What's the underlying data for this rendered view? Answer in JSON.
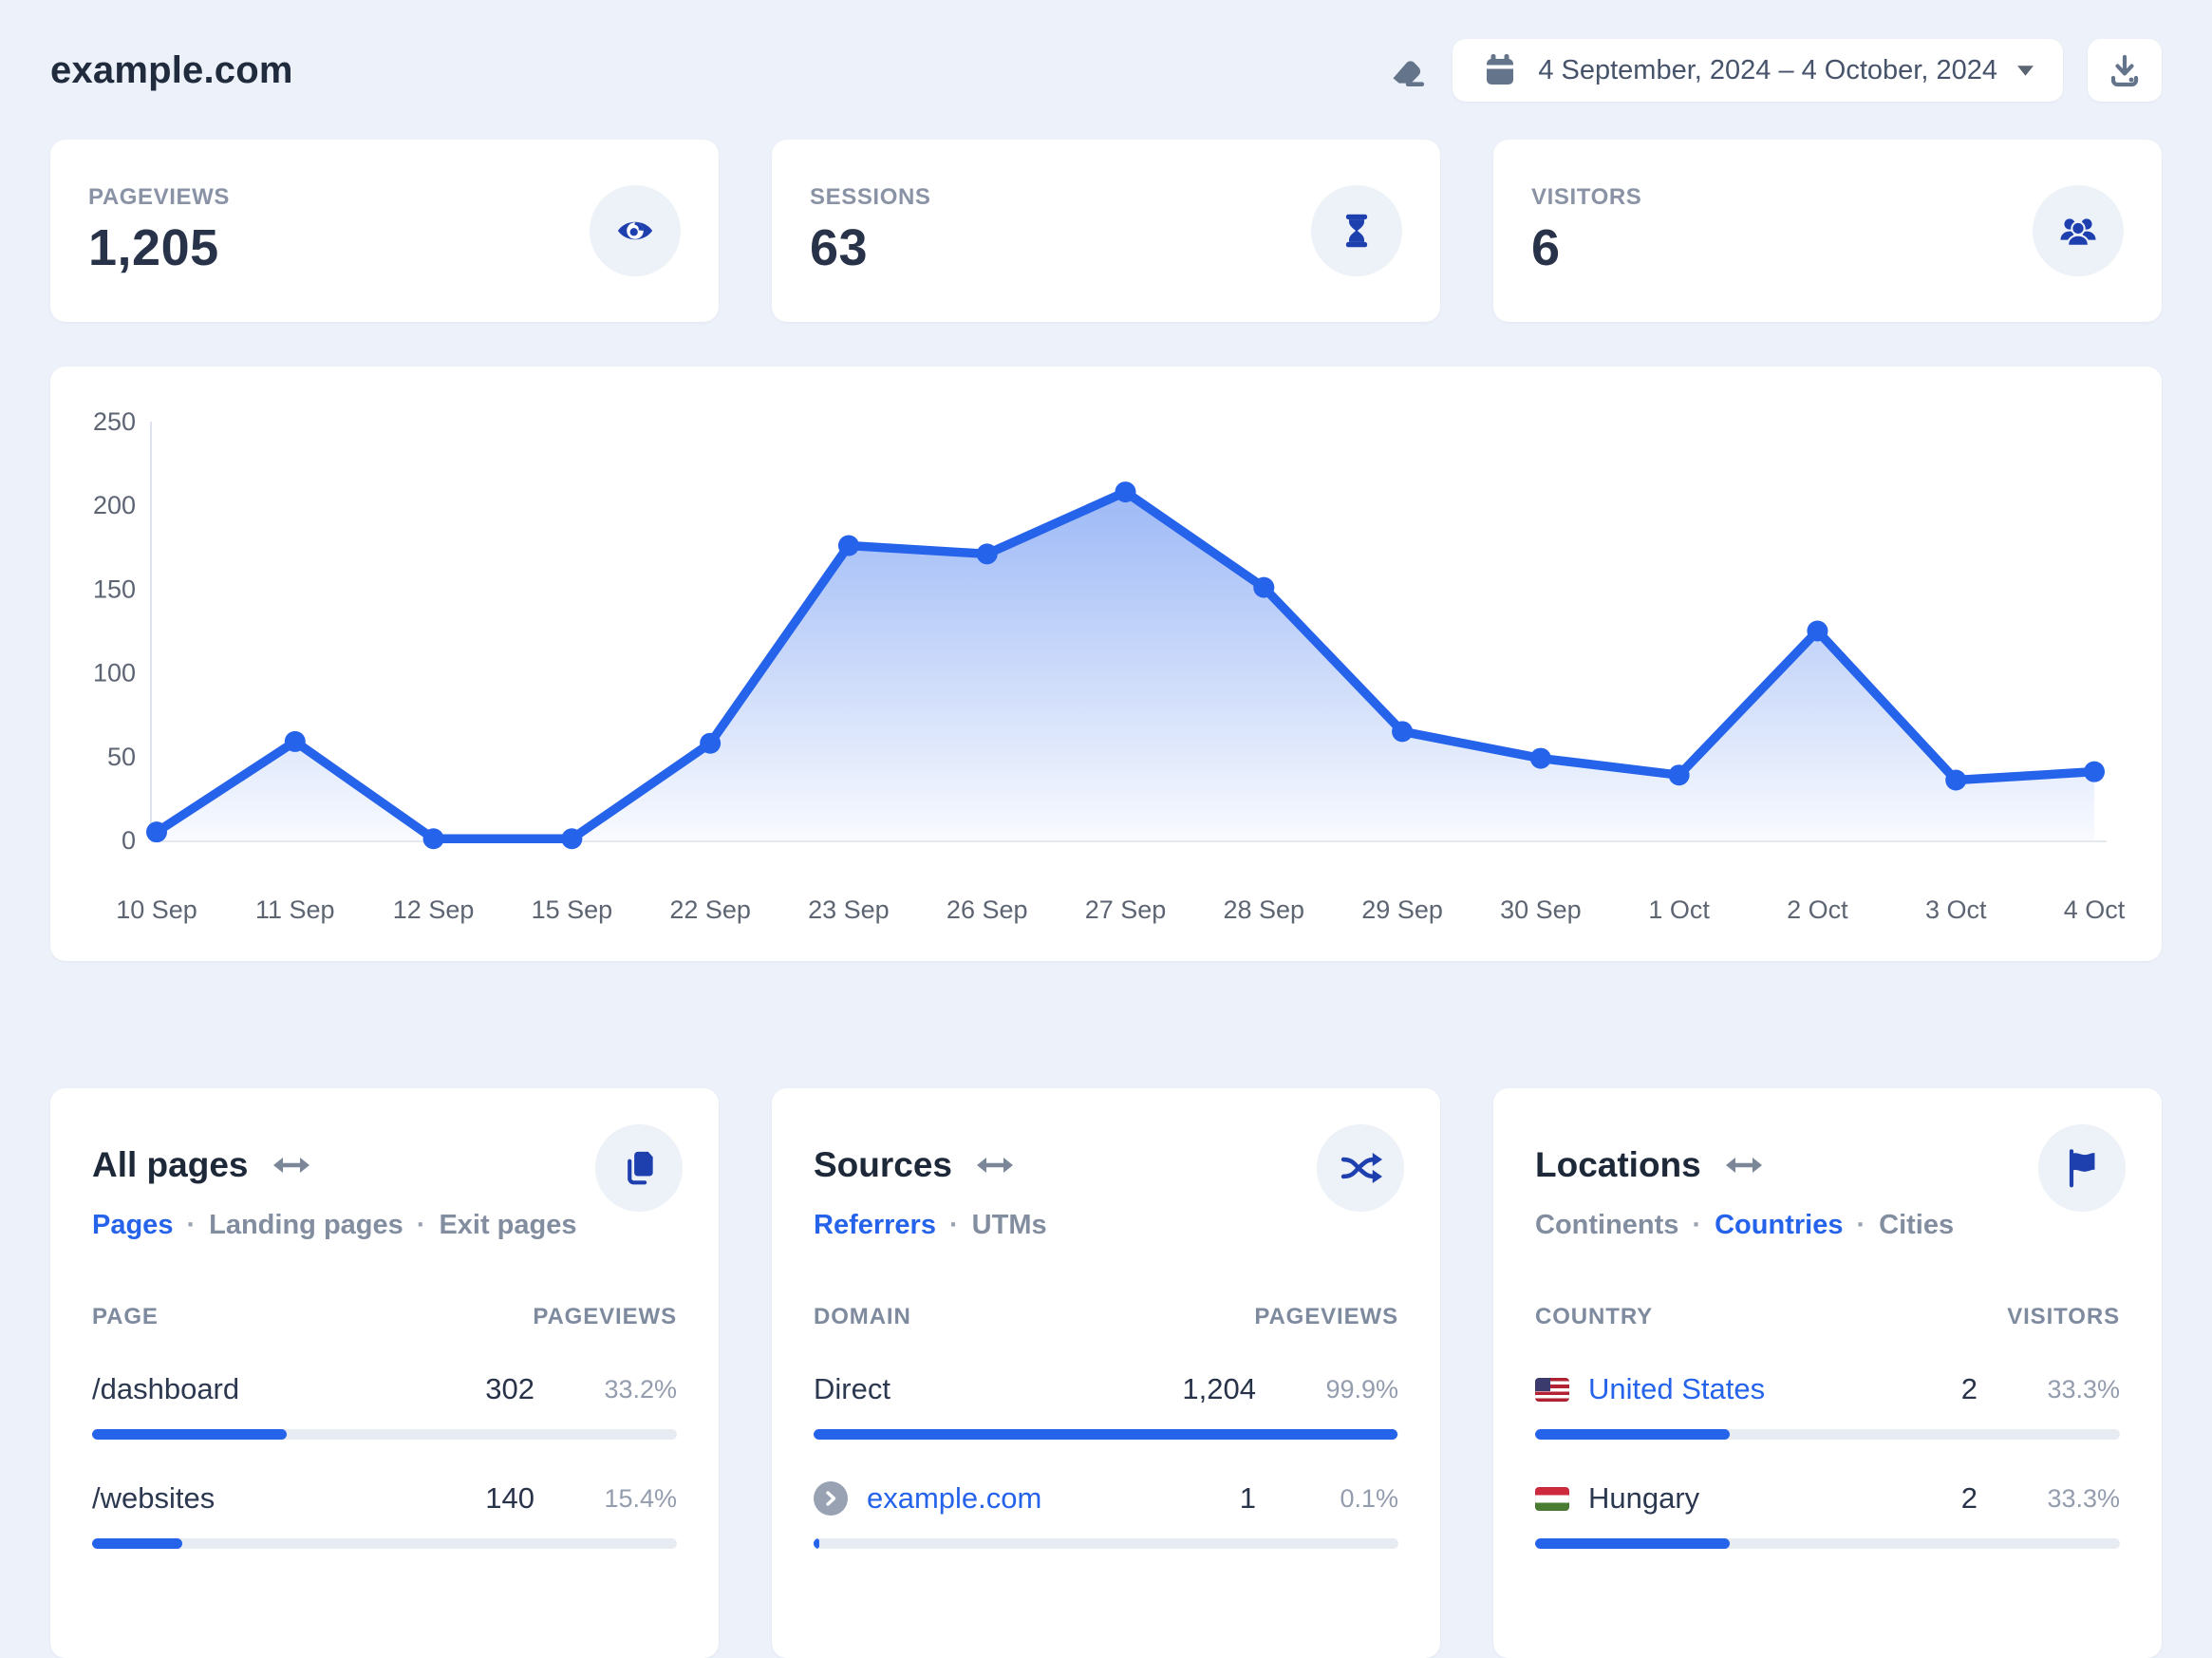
{
  "colors": {
    "accent": "#2563eb",
    "icon_navy": "#1e40af",
    "slate_icon": "#64748b",
    "background": "#edf1f9"
  },
  "header": {
    "site_title": "example.com",
    "date_range": "4 September, 2024 – 4 October, 2024"
  },
  "stats": [
    {
      "label": "PAGEVIEWS",
      "value": "1,205",
      "icon": "eye-icon"
    },
    {
      "label": "SESSIONS",
      "value": "63",
      "icon": "hourglass-icon"
    },
    {
      "label": "VISITORS",
      "value": "6",
      "icon": "users-icon"
    }
  ],
  "chart_data": {
    "type": "area",
    "x": [
      "10 Sep",
      "11 Sep",
      "12 Sep",
      "15 Sep",
      "22 Sep",
      "23 Sep",
      "26 Sep",
      "27 Sep",
      "28 Sep",
      "29 Sep",
      "30 Sep",
      "1 Oct",
      "2 Oct",
      "3 Oct",
      "4 Oct"
    ],
    "values": [
      5,
      59,
      1,
      1,
      58,
      176,
      171,
      208,
      151,
      65,
      49,
      39,
      125,
      36,
      41
    ],
    "ylim": [
      0,
      250
    ],
    "yticks": [
      0,
      50,
      100,
      150,
      200,
      250
    ],
    "xlabel": "",
    "ylabel": "",
    "grid": false,
    "legend": "none",
    "line_color": "#2563eb"
  },
  "panels": [
    {
      "title": "All pages",
      "action_icon": "copy-icon",
      "tabs": [
        {
          "label": "Pages"
        },
        {
          "label": "Landing pages"
        },
        {
          "label": "Exit pages"
        }
      ],
      "columns": {
        "left": "PAGE",
        "right": "PAGEVIEWS"
      },
      "rows": [
        {
          "label": "/dashboard",
          "value": "302",
          "pct": "33.2%",
          "bar": 33.2
        },
        {
          "label": "/websites",
          "value": "140",
          "pct": "15.4%",
          "bar": 15.4
        }
      ]
    },
    {
      "title": "Sources",
      "action_icon": "shuffle-icon",
      "tabs": [
        {
          "label": "Referrers"
        },
        {
          "label": "UTMs"
        }
      ],
      "columns": {
        "left": "DOMAIN",
        "right": "PAGEVIEWS"
      },
      "rows": [
        {
          "label": "Direct",
          "value": "1,204",
          "pct": "99.9%",
          "bar": 99.9
        },
        {
          "label": "example.com",
          "value": "1",
          "pct": "0.1%",
          "bar": 1
        }
      ]
    },
    {
      "title": "Locations",
      "action_icon": "flag-icon",
      "tabs": [
        {
          "label": "Continents"
        },
        {
          "label": "Countries"
        },
        {
          "label": "Cities"
        }
      ],
      "columns": {
        "left": "COUNTRY",
        "right": "VISITORS"
      },
      "rows": [
        {
          "label": "United States",
          "value": "2",
          "pct": "33.3%",
          "bar": 33.3
        },
        {
          "label": "Hungary",
          "value": "2",
          "pct": "33.3%",
          "bar": 33.3
        }
      ]
    }
  ]
}
